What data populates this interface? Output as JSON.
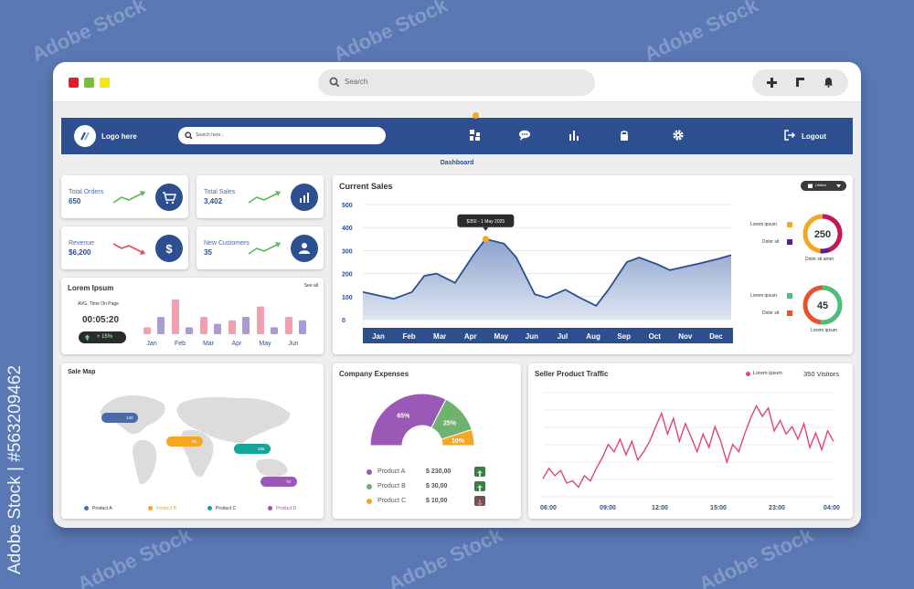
{
  "watermark": "Adobe Stock",
  "side_credit": "Adobe Stock | #563209462",
  "browser": {
    "window_dots": [
      "#e81b23",
      "#7dbb3c",
      "#f5e610"
    ],
    "search_placeholder": "Search",
    "action_icons": [
      "plus-icon",
      "square-bracket-icon",
      "bell-icon"
    ]
  },
  "nav": {
    "logo_label": "Logo here",
    "search_placeholder": "Search here..",
    "icons": [
      "grid-icon",
      "chat-icon",
      "bar-chart-icon",
      "lock-icon",
      "gear-icon"
    ],
    "logout_label": "Logout",
    "page_label": "Dashboard"
  },
  "stats": {
    "total_orders": {
      "title": "Total Orders",
      "value": "650"
    },
    "total_sales": {
      "title": "Total Sales",
      "value": "3,402"
    },
    "revenue": {
      "title": "Revenue",
      "value": "$6,200"
    },
    "new_customers": {
      "title": "New Customers",
      "value": "35"
    }
  },
  "lorem_card": {
    "title": "Lorem Ipsum",
    "see_all": "See all",
    "avg_label": "AVG, Time On Page",
    "time": "00:05:20",
    "trend": "+ 15%",
    "chart_data": {
      "type": "bar",
      "categories": [
        "Jan",
        "Feb",
        "Mar",
        "Apr",
        "May",
        "Jun"
      ],
      "series": [
        {
          "values": [
            2,
            10,
            5,
            4,
            8,
            5
          ],
          "color": "#f2a0b0"
        },
        {
          "values": [
            5,
            2,
            3,
            5,
            2,
            4
          ],
          "color": "#a99bd4"
        }
      ]
    }
  },
  "current_sales": {
    "title": "Current Sales",
    "dropdown": "Lifetime",
    "tooltip": "$350 - 1 May 2025",
    "chart_data": {
      "type": "area",
      "categories": [
        "Jan",
        "Feb",
        "Mar",
        "Apr",
        "May",
        "Jun",
        "Jul",
        "Aug",
        "Sep",
        "Oct",
        "Nov",
        "Dec"
      ],
      "yticks": [
        "0",
        "100",
        "200",
        "300",
        "400",
        "500"
      ],
      "ylim": [
        0,
        500
      ],
      "x": [
        0,
        0.5,
        1,
        1.6,
        2,
        2.4,
        3,
        3.6,
        4,
        4.6,
        5,
        5.6,
        6,
        6.6,
        7,
        7.6,
        8,
        8.6,
        9,
        9.6,
        10,
        10.5,
        11,
        11.6,
        12
      ],
      "values": [
        120,
        105,
        90,
        120,
        190,
        200,
        160,
        280,
        350,
        330,
        270,
        110,
        95,
        130,
        100,
        60,
        130,
        250,
        270,
        240,
        215,
        230,
        245,
        265,
        280
      ]
    },
    "donut1": {
      "value": "250",
      "label": "Dolor sit amet",
      "legend": [
        {
          "label": "Lorem ipsum",
          "color": "#f5a623"
        },
        {
          "label": "Dolor sit",
          "color": "#5a1e8a"
        }
      ]
    },
    "donut2": {
      "value": "45",
      "label": "Lorem ipsum",
      "legend": [
        {
          "label": "Lorem ipsum",
          "color": "#4cbf7a"
        },
        {
          "label": "Dolor sit",
          "color": "#e8512e"
        }
      ]
    }
  },
  "sale_map": {
    "title": "Sale Map",
    "pins": [
      {
        "value": "130",
        "color": "#4a6aa8"
      },
      {
        "value": "65",
        "color": "#f5a623"
      },
      {
        "value": "455",
        "color": "#13a49a"
      },
      {
        "value": "70",
        "color": "#9b59b6"
      }
    ],
    "legend": [
      {
        "label": "Product A",
        "color": "#4a6aa8"
      },
      {
        "label": "Product B",
        "color": "#f5a623"
      },
      {
        "label": "Product C",
        "color": "#13a49a"
      },
      {
        "label": "Product D",
        "color": "#9b59b6"
      }
    ]
  },
  "expenses": {
    "title": "Company Expenses",
    "chart_data": {
      "type": "pie",
      "labels": [
        "65%",
        "25%",
        "10%"
      ],
      "values": [
        65,
        25,
        10
      ],
      "colors": [
        "#9b59b6",
        "#6fb26f",
        "#f5a623"
      ]
    },
    "rows": [
      {
        "label": "Product A",
        "amount": "$ 230,00",
        "color": "#9b59b6",
        "trend": "up"
      },
      {
        "label": "Product B",
        "amount": "$ 30,00",
        "color": "#6fb26f",
        "trend": "up"
      },
      {
        "label": "Product C",
        "amount": "$ 10,00",
        "color": "#f5a623",
        "trend": "down"
      }
    ]
  },
  "traffic": {
    "title": "Seller Product Traffic",
    "legend": "Lorem ipsum",
    "visitors": "350 Visitors",
    "chart_data": {
      "type": "line",
      "xticks": [
        "06:00",
        "09:00",
        "12:00",
        "15:00",
        "18:00",
        "21:00",
        "23:00",
        "04:00"
      ],
      "values": [
        12,
        22,
        15,
        20,
        8,
        10,
        4,
        15,
        10,
        22,
        32,
        45,
        38,
        50,
        35,
        48,
        30,
        38,
        48,
        62,
        75,
        55,
        70,
        48,
        65,
        52,
        38,
        55,
        42,
        62,
        48,
        28,
        45,
        38,
        55,
        70,
        82,
        72,
        80,
        58,
        68,
        55,
        62,
        50,
        65,
        42,
        56,
        40,
        58,
        48
      ]
    }
  }
}
